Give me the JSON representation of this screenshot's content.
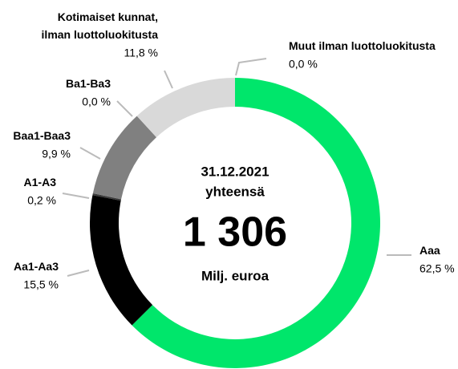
{
  "chart_data": {
    "type": "donut",
    "categories": [
      "Aaa",
      "Aa1-Aa3",
      "A1-A3",
      "Baa1-Baa3",
      "Ba1-Ba3",
      "Kotimaiset kunnat,\nilman luottoluokitusta",
      "Muut ilman luottoluokitusta"
    ],
    "values": [
      62.5,
      15.5,
      0.2,
      9.9,
      0.0,
      11.8,
      0.0
    ],
    "value_labels": [
      "62,5 %",
      "15,5 %",
      "0,2 %",
      "9,9 %",
      "0,0 %",
      "11,8 %",
      "0,0 %"
    ],
    "colors": [
      "#00e66b",
      "#000000",
      "#3a3a3a",
      "#808080",
      "#b0b0b0",
      "#d9d9d9",
      "#eeeeee"
    ],
    "center_text": [
      "31.12.2021",
      "yhteensä",
      "1 306",
      "Milj. euroa"
    ]
  }
}
